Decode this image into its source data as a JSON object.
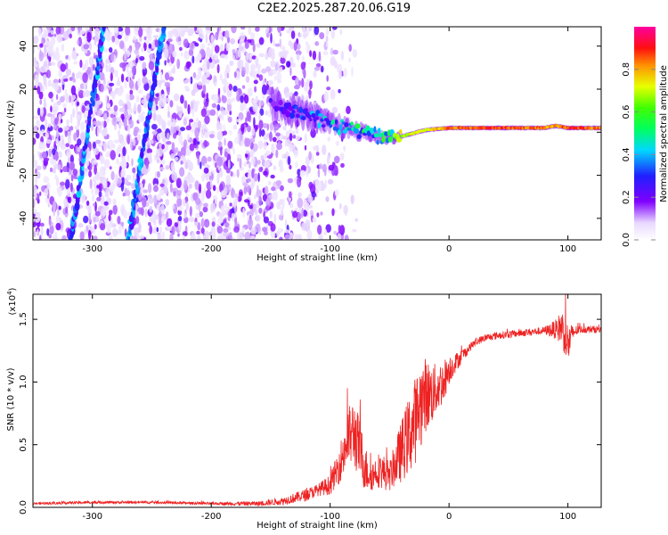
{
  "figure": {
    "title": "C2E2.2025.287.20.06.G19"
  },
  "chart_data": [
    {
      "type": "heatmap",
      "title": "C2E2.2025.287.20.06.G19",
      "xlabel": "Height of straight line (km)",
      "ylabel": "Frequency (Hz)",
      "xlim": [
        -350,
        128
      ],
      "ylim": [
        -50,
        49
      ],
      "xticks": [
        "-300",
        "-200",
        "-100",
        "0",
        "100"
      ],
      "xtick_values": [
        -300,
        -200,
        -100,
        0,
        100
      ],
      "yticks": [
        "-40",
        "-20",
        "0",
        "20",
        "40"
      ],
      "ytick_values": [
        -40,
        -20,
        0,
        20,
        40
      ],
      "colorbar": {
        "label": "Normalized spectral amplitude",
        "range": [
          0,
          1
        ],
        "ticks": [
          "0.0",
          "0.2",
          "0.4",
          "0.6",
          "0.8"
        ],
        "tick_values": [
          0,
          0.2,
          0.4,
          0.6,
          0.8
        ],
        "colormap": "rainbow (white-violet-blue-cyan-green-yellow-red-magenta)"
      },
      "features": {
        "main_signal_track": {
          "heights_km": [
            -140,
            -120,
            -100,
            -80,
            -60,
            -50,
            -40,
            -20,
            0,
            40,
            80,
            90,
            100,
            128
          ],
          "frequency_hz": [
            12,
            8,
            4,
            1,
            -2,
            -3,
            -2,
            1,
            2,
            2,
            2,
            3,
            2,
            2
          ],
          "amplitude": [
            0.25,
            0.35,
            0.45,
            0.5,
            0.6,
            0.65,
            0.7,
            0.75,
            0.85,
            0.9,
            0.85,
            0.8,
            0.9,
            0.85
          ]
        },
        "diagonal_streaks": [
          {
            "start": [
              -318,
              -50
            ],
            "end": [
              -290,
              49
            ]
          },
          {
            "start": [
              -270,
              -50
            ],
            "end": [
              -240,
              49
            ]
          }
        ],
        "noise_region_km": [
          -350,
          -100
        ]
      }
    },
    {
      "type": "line",
      "title": "",
      "xlabel": "Height of straight line (km)",
      "ylabel": "SNR (10 * v/v)",
      "yscale_label": "(x10",
      "yscale_exp": "4",
      "xlim": [
        -350,
        128
      ],
      "ylim": [
        0,
        1.7
      ],
      "xticks": [
        "-300",
        "-200",
        "-100",
        "0",
        "100"
      ],
      "xtick_values": [
        -300,
        -200,
        -100,
        0,
        100
      ],
      "yticks": [
        "0.0",
        "0.5",
        "1.0",
        "1.5"
      ],
      "ytick_values": [
        0,
        0.5,
        1.0,
        1.5
      ],
      "series": [
        {
          "name": "SNR",
          "color": "#ee2222",
          "x": [
            -350,
            -300,
            -250,
            -200,
            -160,
            -140,
            -120,
            -110,
            -100,
            -95,
            -90,
            -85,
            -80,
            -75,
            -70,
            -65,
            -60,
            -55,
            -50,
            -45,
            -40,
            -35,
            -30,
            -25,
            -20,
            -15,
            -10,
            -5,
            0,
            5,
            10,
            15,
            20,
            25,
            30,
            40,
            50,
            60,
            70,
            80,
            90,
            95,
            100,
            105,
            110,
            128
          ],
          "y": [
            0.03,
            0.04,
            0.04,
            0.03,
            0.03,
            0.05,
            0.1,
            0.14,
            0.18,
            0.28,
            0.4,
            0.55,
            0.6,
            0.45,
            0.3,
            0.25,
            0.3,
            0.28,
            0.25,
            0.35,
            0.45,
            0.55,
            0.65,
            0.8,
            0.9,
            0.9,
            0.95,
            1.0,
            1.1,
            1.15,
            1.2,
            1.25,
            1.3,
            1.33,
            1.35,
            1.37,
            1.38,
            1.39,
            1.4,
            1.41,
            1.42,
            1.44,
            1.3,
            1.4,
            1.42,
            1.42
          ],
          "noise_amplitude": [
            0.01,
            0.01,
            0.01,
            0.01,
            0.02,
            0.03,
            0.05,
            0.05,
            0.08,
            0.12,
            0.18,
            0.25,
            0.28,
            0.25,
            0.18,
            0.12,
            0.14,
            0.14,
            0.12,
            0.18,
            0.25,
            0.3,
            0.35,
            0.35,
            0.3,
            0.25,
            0.2,
            0.18,
            0.12,
            0.08,
            0.06,
            0.04,
            0.03,
            0.03,
            0.03,
            0.03,
            0.03,
            0.03,
            0.03,
            0.03,
            0.08,
            0.15,
            0.18,
            0.05,
            0.03,
            0.03
          ]
        }
      ]
    }
  ]
}
